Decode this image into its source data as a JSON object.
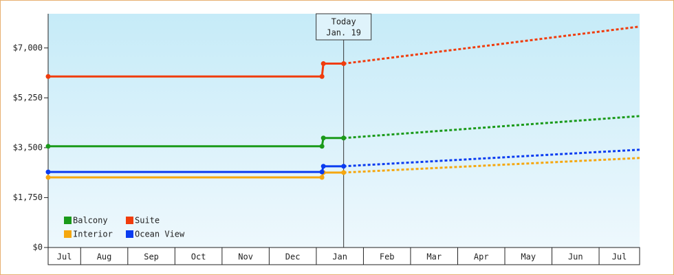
{
  "chart_data": {
    "type": "line",
    "x": [
      0.31,
      6.12,
      6.15,
      6.58,
      12.86
    ],
    "xlim": [
      0.31,
      12.86
    ],
    "xticks": [
      {
        "value": 0,
        "label": "Jul"
      },
      {
        "value": 1,
        "label": "Aug"
      },
      {
        "value": 2,
        "label": "Sep"
      },
      {
        "value": 3,
        "label": "Oct"
      },
      {
        "value": 4,
        "label": "Nov"
      },
      {
        "value": 5,
        "label": "Dec"
      },
      {
        "value": 6,
        "label": "Jan"
      },
      {
        "value": 7,
        "label": "Feb"
      },
      {
        "value": 8,
        "label": "Mar"
      },
      {
        "value": 9,
        "label": "Apr"
      },
      {
        "value": 10,
        "label": "May"
      },
      {
        "value": 11,
        "label": "Jun"
      },
      {
        "value": 12,
        "label": "Jul"
      }
    ],
    "ylim": [
      0,
      8200
    ],
    "yticks": [
      {
        "value": 0,
        "label": "$0"
      },
      {
        "value": 1750,
        "label": "$1,750"
      },
      {
        "value": 3500,
        "label": "$3,500"
      },
      {
        "value": 5250,
        "label": "$5,250"
      },
      {
        "value": 7000,
        "label": "$7,000"
      }
    ],
    "annotation": {
      "x": 6.58,
      "text": [
        "Today",
        "Jan. 19"
      ]
    },
    "legend": "bottom-left",
    "series": [
      {
        "name": "Balcony",
        "color": "#1a9a1a",
        "values": [
          3550,
          3550,
          3840,
          3840,
          4610
        ]
      },
      {
        "name": "Suite",
        "color": "#f03c0c",
        "values": [
          6000,
          6000,
          6450,
          6450,
          7750
        ]
      },
      {
        "name": "Interior",
        "color": "#f5a70f",
        "values": [
          2460,
          2460,
          2630,
          2630,
          3140
        ]
      },
      {
        "name": "Ocean View",
        "color": "#0a3cf0",
        "values": [
          2650,
          2650,
          2850,
          2850,
          3430
        ]
      }
    ]
  }
}
